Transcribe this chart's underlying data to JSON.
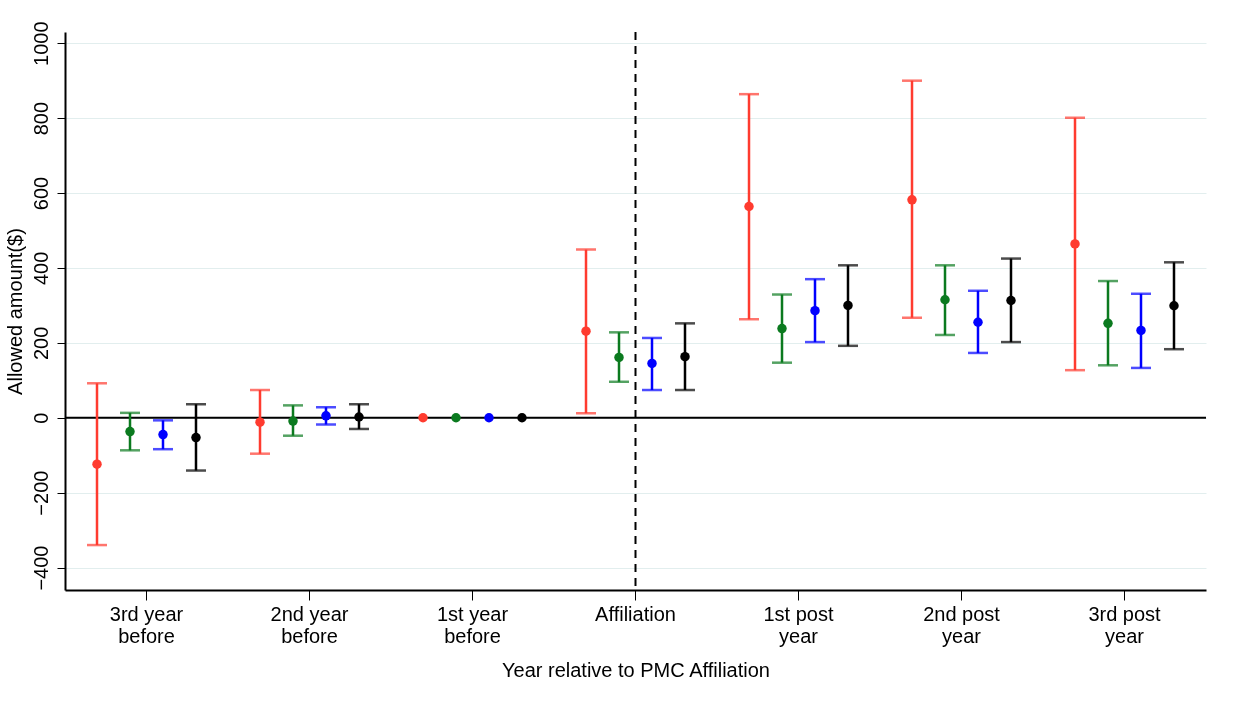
{
  "chart_data": {
    "type": "scatter",
    "xlabel": "Year relative to PMC Affiliation",
    "ylabel": "Allowed amount($)",
    "categories": [
      "3rd year\nbefore",
      "2nd year\nbefore",
      "1st year\nbefore",
      "Affiliation",
      "1st post\nyear",
      "2nd post\nyear",
      "3rd post\nyear"
    ],
    "ylim": [
      -460,
      1030
    ],
    "yticks": [
      -400,
      -200,
      0,
      200,
      400,
      600,
      800,
      1000
    ],
    "grid": "y",
    "legend": false,
    "marker": "circle",
    "ref_lines": [
      {
        "axis": "y",
        "value": 0,
        "color": "#000000",
        "line_style": "solid"
      },
      {
        "axis": "x",
        "value": "Affiliation",
        "color": "#000000",
        "line_style": "dashed"
      }
    ],
    "series": [
      {
        "color": "#ff3b2f",
        "values": [
          -124,
          -12,
          0,
          231,
          564,
          582,
          464
        ],
        "errors": [
          [
            -340,
            92
          ],
          [
            -96,
            74
          ],
          null,
          [
            12,
            449
          ],
          [
            263,
            864
          ],
          [
            267,
            900
          ],
          [
            127,
            801
          ]
        ]
      },
      {
        "color": "#0b7a1f",
        "values": [
          -37,
          -9,
          0,
          161,
          238,
          315,
          252
        ],
        "errors": [
          [
            -87,
            13
          ],
          [
            -48,
            33
          ],
          null,
          [
            96,
            228
          ],
          [
            147,
            329
          ],
          [
            221,
            407
          ],
          [
            140,
            365
          ]
        ]
      },
      {
        "color": "#0000ff",
        "values": [
          -45,
          5,
          0,
          145,
          286,
          255,
          233
        ],
        "errors": [
          [
            -84,
            -7
          ],
          [
            -18,
            28
          ],
          null,
          [
            74,
            213
          ],
          [
            202,
            370
          ],
          [
            173,
            339
          ],
          [
            133,
            331
          ]
        ]
      },
      {
        "color": "#000000",
        "values": [
          -53,
          2,
          0,
          163,
          300,
          313,
          299
        ],
        "errors": [
          [
            -141,
            36
          ],
          [
            -30,
            36
          ],
          null,
          [
            74,
            252
          ],
          [
            192,
            407
          ],
          [
            202,
            425
          ],
          [
            183,
            415
          ]
        ]
      }
    ]
  }
}
